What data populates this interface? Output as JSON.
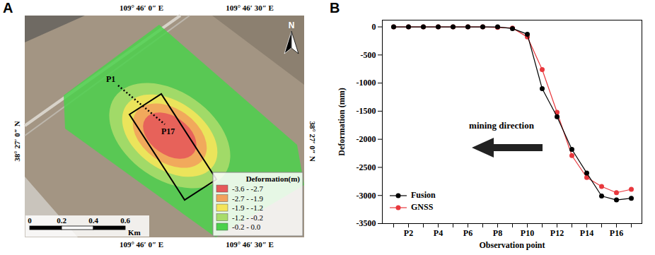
{
  "chart_data": [
    {
      "type": "map",
      "panel": "A",
      "lon_labels_top": [
        "109° 46′ 0″ E",
        "109° 46′ 30″ E"
      ],
      "lon_labels_bottom": [
        "109° 46′ 0″ E",
        "109° 46′ 30″ E"
      ],
      "lat_label_left": "38° 27′ 0″ N",
      "lat_label_right": "38° 27′ 0″ N",
      "north": "N",
      "points": [
        "P1",
        "P17"
      ],
      "legend_title": "Deformation(m)",
      "classes": [
        {
          "label": "-3.6 - -2.7",
          "color": "#e65a5a"
        },
        {
          "label": "-2.7 - -1.9",
          "color": "#f2a25c"
        },
        {
          "label": "-1.9 - -1.2",
          "color": "#f3e45a"
        },
        {
          "label": "-1.2 - -0.2",
          "color": "#a8dc6a"
        },
        {
          "label": "-0.2 - 0.0",
          "color": "#4cd14c"
        }
      ],
      "scale_bar": {
        "ticks": [
          0,
          0.2,
          0.4,
          0.6
        ],
        "unit": "Km"
      }
    },
    {
      "type": "line",
      "panel": "B",
      "categories": [
        null,
        "P2",
        null,
        "P4",
        null,
        "P6",
        null,
        "P8",
        null,
        "P10",
        null,
        "P12",
        null,
        "P14",
        null,
        "P16",
        null
      ],
      "series": [
        {
          "name": "Fusion",
          "color": "#000000",
          "marker": "circle",
          "values": [
            0,
            0,
            0,
            0,
            0,
            0,
            0,
            0,
            -30,
            -130,
            -1100,
            -1600,
            -2180,
            -2600,
            -3010,
            -3080,
            -3050
          ]
        },
        {
          "name": "GNSS",
          "color": "#e8383d",
          "marker": "circle",
          "values": [
            0,
            0,
            0,
            0,
            0,
            0,
            0,
            -10,
            -20,
            -180,
            -760,
            -1520,
            -2290,
            -2680,
            -2840,
            -2950,
            -2890
          ]
        }
      ],
      "xlabel": "Observation point",
      "ylabel": "Deformation (mm)",
      "ylim": [
        -3500,
        120
      ],
      "yticks": [
        -3500,
        -3000,
        -2500,
        -2000,
        -1500,
        -1000,
        -500,
        0
      ],
      "legend": "bottom-left",
      "annotations": [
        {
          "text": "mining direction"
        }
      ],
      "grid": false
    }
  ]
}
